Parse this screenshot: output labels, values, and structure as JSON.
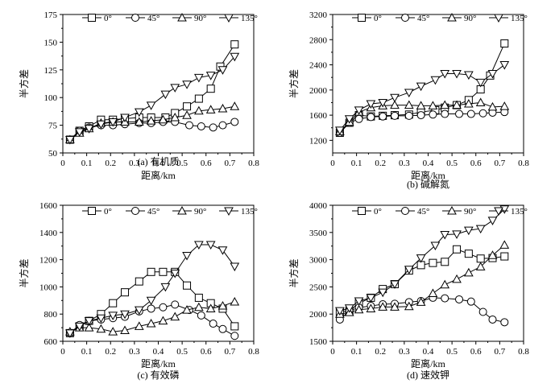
{
  "chart_data": [
    {
      "type": "line",
      "caption": "(a) 有机质",
      "xlabel": "距离/km",
      "ylabel": "半方差",
      "xlim": [
        0,
        0.8
      ],
      "ylim": [
        50,
        175
      ],
      "xticks": [
        "0",
        "0.1",
        "0.2",
        "0.3",
        "0.4",
        "0.5",
        "0.6",
        "0.7",
        "0.8"
      ],
      "yticks": [
        "50",
        "75",
        "100",
        "125",
        "150",
        "175"
      ],
      "legend": [
        "0°",
        "45°",
        "90°",
        "135°"
      ],
      "series": [
        {
          "name": "0°",
          "marker": "square",
          "x": [
            0.03,
            0.07,
            0.11,
            0.16,
            0.21,
            0.26,
            0.32,
            0.37,
            0.43,
            0.47,
            0.52,
            0.57,
            0.62,
            0.66,
            0.72
          ],
          "y": [
            62,
            70,
            74,
            80,
            80,
            81,
            82,
            82,
            82,
            86,
            92,
            99,
            108,
            128,
            148
          ]
        },
        {
          "name": "45°",
          "marker": "circle",
          "x": [
            0.03,
            0.07,
            0.11,
            0.16,
            0.21,
            0.26,
            0.32,
            0.37,
            0.42,
            0.47,
            0.53,
            0.58,
            0.63,
            0.67,
            0.72
          ],
          "y": [
            62,
            70,
            73,
            75,
            75,
            76,
            77,
            77,
            78,
            78,
            75,
            74,
            73,
            75,
            78
          ]
        },
        {
          "name": "90°",
          "marker": "triangle-up",
          "x": [
            0.03,
            0.07,
            0.11,
            0.16,
            0.21,
            0.26,
            0.32,
            0.37,
            0.42,
            0.47,
            0.52,
            0.57,
            0.62,
            0.67,
            0.72
          ],
          "y": [
            62,
            68,
            72,
            77,
            78,
            78,
            78,
            79,
            80,
            82,
            84,
            88,
            89,
            90,
            92
          ]
        },
        {
          "name": "135°",
          "marker": "triangle-down",
          "x": [
            0.03,
            0.07,
            0.11,
            0.16,
            0.21,
            0.26,
            0.32,
            0.37,
            0.43,
            0.47,
            0.52,
            0.57,
            0.62,
            0.67,
            0.72
          ],
          "y": [
            62,
            69,
            72,
            76,
            78,
            82,
            87,
            93,
            103,
            109,
            112,
            118,
            120,
            125,
            137
          ]
        }
      ]
    },
    {
      "type": "line",
      "caption": "(b) 碱解氮",
      "xlabel": "距离/km",
      "ylabel": "半方差",
      "xlim": [
        0,
        0.8
      ],
      "ylim": [
        1000,
        3200
      ],
      "xticks": [
        "0",
        "0.1",
        "0.2",
        "0.3",
        "0.4",
        "0.5",
        "0.6",
        "0.7",
        "0.8"
      ],
      "yticks": [
        "1200",
        "1600",
        "2000",
        "2400",
        "2800",
        "3200"
      ],
      "legend": [
        "0°",
        "45°",
        "90°",
        "135°"
      ],
      "series": [
        {
          "name": "0°",
          "marker": "square",
          "x": [
            0.03,
            0.07,
            0.11,
            0.16,
            0.21,
            0.26,
            0.32,
            0.37,
            0.43,
            0.47,
            0.52,
            0.57,
            0.62,
            0.66,
            0.72
          ],
          "y": [
            1320,
            1480,
            1600,
            1580,
            1590,
            1600,
            1610,
            1650,
            1680,
            1720,
            1760,
            1840,
            2010,
            2230,
            2740
          ]
        },
        {
          "name": "45°",
          "marker": "circle",
          "x": [
            0.03,
            0.07,
            0.11,
            0.16,
            0.21,
            0.26,
            0.32,
            0.37,
            0.42,
            0.47,
            0.53,
            0.58,
            0.63,
            0.67,
            0.72
          ],
          "y": [
            1320,
            1480,
            1540,
            1570,
            1580,
            1590,
            1590,
            1600,
            1610,
            1620,
            1620,
            1620,
            1630,
            1640,
            1650
          ]
        },
        {
          "name": "90°",
          "marker": "triangle-up",
          "x": [
            0.03,
            0.07,
            0.11,
            0.16,
            0.21,
            0.26,
            0.32,
            0.37,
            0.42,
            0.47,
            0.52,
            0.57,
            0.62,
            0.67,
            0.72
          ],
          "y": [
            1340,
            1490,
            1650,
            1720,
            1750,
            1760,
            1760,
            1750,
            1750,
            1760,
            1760,
            1780,
            1800,
            1730,
            1740
          ]
        },
        {
          "name": "135°",
          "marker": "triangle-down",
          "x": [
            0.03,
            0.07,
            0.11,
            0.16,
            0.21,
            0.26,
            0.32,
            0.37,
            0.43,
            0.47,
            0.52,
            0.57,
            0.62,
            0.67,
            0.72
          ],
          "y": [
            1360,
            1540,
            1680,
            1780,
            1800,
            1880,
            1960,
            2060,
            2160,
            2260,
            2260,
            2240,
            2120,
            2260,
            2400
          ]
        }
      ]
    },
    {
      "type": "line",
      "caption": "(c) 有效磷",
      "xlabel": "距离/km",
      "ylabel": "半方差",
      "xlim": [
        0,
        0.8
      ],
      "ylim": [
        600,
        1600
      ],
      "xticks": [
        "0",
        "0.1",
        "0.2",
        "0.3",
        "0.4",
        "0.5",
        "0.6",
        "0.7",
        "0.8"
      ],
      "yticks": [
        "600",
        "800",
        "1000",
        "1200",
        "1400",
        "1600"
      ],
      "legend": [
        "0°",
        "45°",
        "90°",
        "135°"
      ],
      "series": [
        {
          "name": "0°",
          "marker": "square",
          "x": [
            0.03,
            0.07,
            0.11,
            0.16,
            0.21,
            0.26,
            0.32,
            0.37,
            0.42,
            0.47,
            0.52,
            0.57,
            0.62,
            0.67,
            0.72
          ],
          "y": [
            660,
            710,
            750,
            800,
            880,
            960,
            1040,
            1110,
            1110,
            1110,
            1010,
            920,
            880,
            840,
            710
          ]
        },
        {
          "name": "45°",
          "marker": "circle",
          "x": [
            0.03,
            0.07,
            0.11,
            0.16,
            0.21,
            0.26,
            0.32,
            0.37,
            0.42,
            0.47,
            0.53,
            0.58,
            0.63,
            0.67,
            0.72
          ],
          "y": [
            660,
            720,
            750,
            760,
            770,
            780,
            820,
            840,
            850,
            870,
            830,
            790,
            730,
            690,
            640
          ]
        },
        {
          "name": "90°",
          "marker": "triangle-up",
          "x": [
            0.03,
            0.07,
            0.11,
            0.16,
            0.21,
            0.26,
            0.32,
            0.37,
            0.42,
            0.47,
            0.52,
            0.57,
            0.62,
            0.67,
            0.72
          ],
          "y": [
            670,
            700,
            700,
            690,
            670,
            680,
            710,
            730,
            750,
            780,
            830,
            850,
            840,
            860,
            890
          ]
        },
        {
          "name": "135°",
          "marker": "triangle-down",
          "x": [
            0.03,
            0.07,
            0.11,
            0.16,
            0.21,
            0.26,
            0.32,
            0.37,
            0.43,
            0.47,
            0.52,
            0.57,
            0.62,
            0.67,
            0.72
          ],
          "y": [
            660,
            710,
            750,
            770,
            790,
            800,
            830,
            900,
            1000,
            1100,
            1230,
            1310,
            1310,
            1270,
            1150
          ]
        }
      ]
    },
    {
      "type": "line",
      "caption": "(d) 速效钾",
      "xlabel": "距离/km",
      "ylabel": "半方差",
      "xlim": [
        0,
        0.8
      ],
      "ylim": [
        1500,
        4000
      ],
      "xticks": [
        "0",
        "0.1",
        "0.2",
        "0.3",
        "0.4",
        "0.5",
        "0.6",
        "0.7",
        "0.8"
      ],
      "yticks": [
        "1500",
        "2000",
        "2500",
        "3000",
        "3500",
        "4000"
      ],
      "legend": [
        "0°",
        "45°",
        "90°",
        "135°"
      ],
      "series": [
        {
          "name": "0°",
          "marker": "square",
          "x": [
            0.03,
            0.07,
            0.11,
            0.16,
            0.21,
            0.26,
            0.32,
            0.37,
            0.42,
            0.47,
            0.52,
            0.57,
            0.62,
            0.67,
            0.72
          ],
          "y": [
            2040,
            2060,
            2200,
            2300,
            2460,
            2550,
            2800,
            2900,
            2940,
            2960,
            3190,
            3110,
            3020,
            3030,
            3060
          ]
        },
        {
          "name": "45°",
          "marker": "circle",
          "x": [
            0.03,
            0.07,
            0.11,
            0.16,
            0.21,
            0.26,
            0.32,
            0.37,
            0.42,
            0.47,
            0.53,
            0.58,
            0.63,
            0.67,
            0.72
          ],
          "y": [
            1900,
            2060,
            2120,
            2150,
            2180,
            2190,
            2220,
            2240,
            2300,
            2290,
            2270,
            2230,
            2040,
            1900,
            1850
          ]
        },
        {
          "name": "90°",
          "marker": "triangle-up",
          "x": [
            0.03,
            0.07,
            0.11,
            0.16,
            0.21,
            0.26,
            0.32,
            0.37,
            0.42,
            0.47,
            0.52,
            0.57,
            0.62,
            0.67,
            0.72
          ],
          "y": [
            2000,
            2030,
            2080,
            2100,
            2130,
            2130,
            2140,
            2220,
            2380,
            2540,
            2640,
            2760,
            2870,
            3080,
            3270
          ]
        },
        {
          "name": "135°",
          "marker": "triangle-down",
          "x": [
            0.03,
            0.07,
            0.11,
            0.16,
            0.21,
            0.26,
            0.32,
            0.37,
            0.43,
            0.47,
            0.52,
            0.57,
            0.62,
            0.67,
            0.72
          ],
          "y": [
            2060,
            2110,
            2240,
            2300,
            2400,
            2550,
            2820,
            3030,
            3260,
            3460,
            3470,
            3540,
            3570,
            3720,
            3930
          ]
        }
      ]
    }
  ]
}
